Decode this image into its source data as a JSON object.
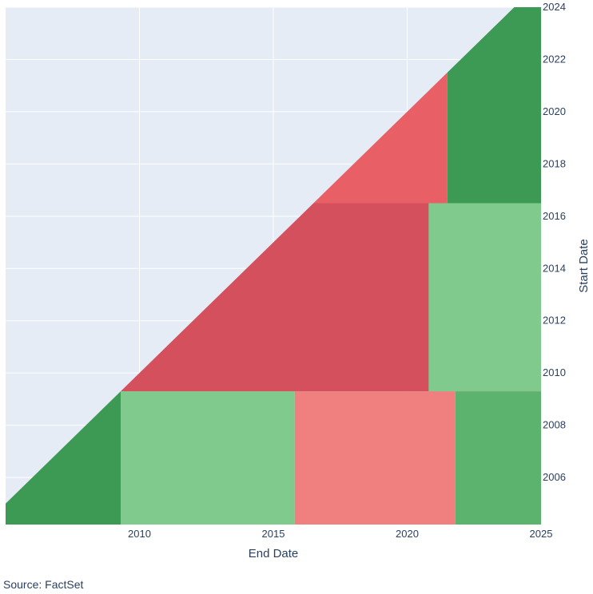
{
  "chart_data": {
    "type": "heatmap",
    "xlabel": "End Date",
    "ylabel": "Start Date",
    "xlim": [
      2005.0,
      2025.0
    ],
    "ylim": [
      2004.2,
      2024.0
    ],
    "x_ticks": [
      2010,
      2015,
      2020,
      2025
    ],
    "y_ticks": [
      2006,
      2008,
      2010,
      2012,
      2014,
      2016,
      2018,
      2020,
      2022,
      2024
    ],
    "grid": true,
    "y_axis_side": "right",
    "mask": "cells where start date is after end date are empty (upper-left triangle)",
    "colors": {
      "plot_background": "#e5ecf6",
      "grid": "#ffffff",
      "dark_green": "#3d9a55",
      "green": "#5bb36d",
      "light_green": "#7fca8c",
      "light_red": "#f08080",
      "red": "#e86066",
      "dark_red": "#d4505c"
    },
    "regions": [
      {
        "start": [
          2004.2,
          2009.3
        ],
        "end": [
          2005.0,
          2009.3
        ],
        "level": "dark_green"
      },
      {
        "start": [
          2004.2,
          2009.3
        ],
        "end": [
          2009.3,
          2015.8
        ],
        "level": "light_green"
      },
      {
        "start": [
          2004.2,
          2009.3
        ],
        "end": [
          2015.8,
          2021.8
        ],
        "level": "light_red"
      },
      {
        "start": [
          2004.2,
          2009.3
        ],
        "end": [
          2021.8,
          2025.0
        ],
        "level": "green"
      },
      {
        "start": [
          2009.3,
          2016.5
        ],
        "end": [
          2009.3,
          2025.0
        ],
        "level": "dark_red"
      },
      {
        "start": [
          2009.3,
          2016.5
        ],
        "end": [
          2020.8,
          2025.0
        ],
        "level": "light_green"
      },
      {
        "start": [
          2016.5,
          2024.0
        ],
        "end": [
          2016.5,
          2021.5
        ],
        "level": "red"
      },
      {
        "start": [
          2016.5,
          2024.0
        ],
        "end": [
          2021.5,
          2025.0
        ],
        "level": "dark_green"
      }
    ]
  },
  "source_note": "Source: FactSet"
}
